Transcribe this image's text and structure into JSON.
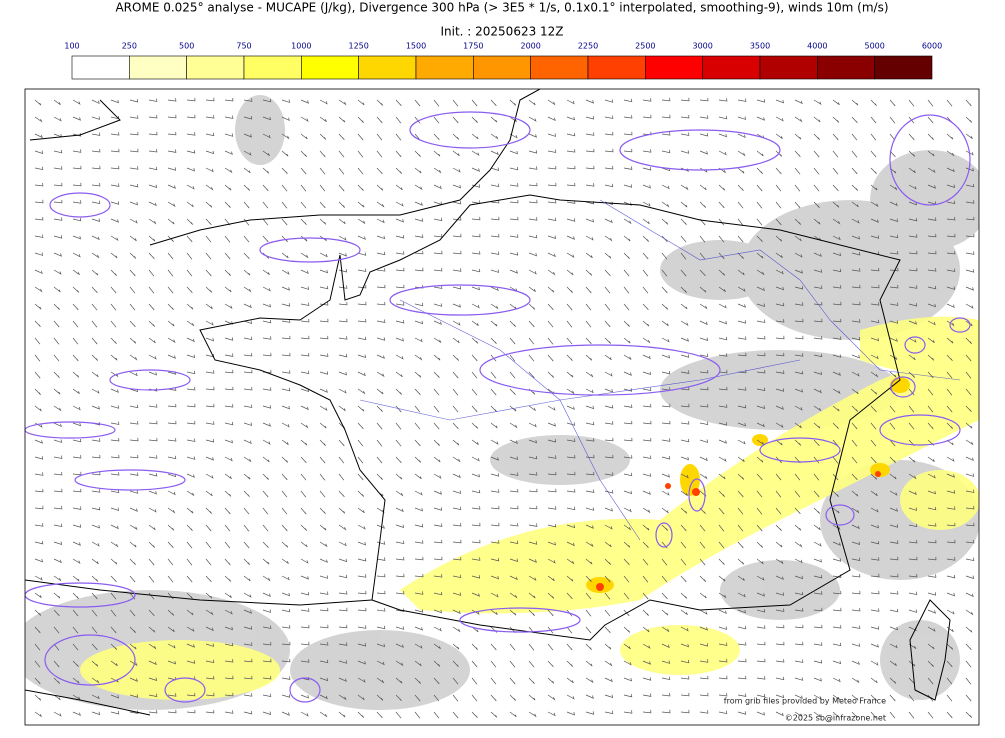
{
  "header": {
    "title": "AROME 0.025° analyse - MUCAPE (J/kg), Divergence 300 hPa (> 3E5 * 1/s, 0.1x0.1° interpolated, smoothing-9), winds 10m (m/s)",
    "init": "Init. : 20250623 12Z"
  },
  "colorbar": {
    "ticks": [
      "100",
      "250",
      "500",
      "750",
      "1000",
      "1250",
      "1500",
      "1750",
      "2000",
      "2250",
      "2500",
      "3000",
      "3500",
      "4000",
      "5000",
      "6000"
    ],
    "colors": [
      "#ffffff",
      "#ffffc4",
      "#ffff96",
      "#ffff64",
      "#ffff00",
      "#ffd700",
      "#ffaa00",
      "#ff9600",
      "#ff6400",
      "#ff4000",
      "#ff0000",
      "#d80000",
      "#b00000",
      "#8a0000",
      "#640000"
    ]
  },
  "credits": {
    "source": "from grib files provided by Meteo France",
    "copyright": "©2025 sb@infrazone.net"
  }
}
